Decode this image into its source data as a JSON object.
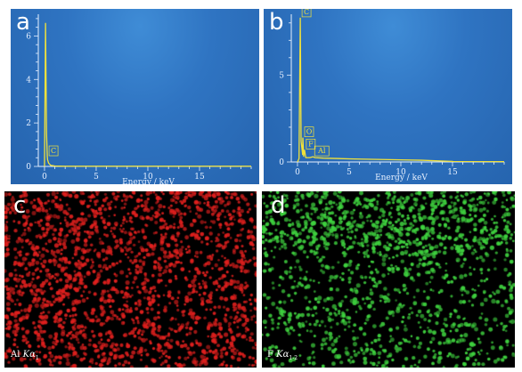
{
  "panels": {
    "a": {
      "letter": "a"
    },
    "b": {
      "letter": "b"
    },
    "c": {
      "letter": "c",
      "label_element": "Al",
      "label_line": "Kα",
      "label_sub": "1"
    },
    "d": {
      "letter": "d",
      "label_element": "F",
      "label_line": "Kα",
      "label_sub": "1-2"
    }
  },
  "colors": {
    "spectrum_bg": "#2f74c2",
    "trace": "#f2e23a",
    "axis": "#e6f0ff",
    "al_map": "#e0201e",
    "f_map": "#3fd23f"
  },
  "chart_data": [
    {
      "type": "line",
      "panel": "a",
      "xlabel": "Energy / keV",
      "ylabel": "",
      "xlim": [
        -0.6,
        20
      ],
      "ylim": [
        0,
        7
      ],
      "xticks": [
        0,
        5,
        10,
        15
      ],
      "yticks": [
        0,
        2,
        4,
        6
      ],
      "grid": false,
      "x": [
        0,
        0.1,
        0.2,
        0.27,
        0.3,
        0.4,
        0.6,
        1.0,
        2,
        5,
        10,
        15,
        20
      ],
      "y": [
        0,
        6.6,
        1.5,
        0.45,
        0.3,
        0.15,
        0.05,
        0.02,
        0.01,
        0.01,
        0.01,
        0.01,
        0.01
      ],
      "annotations": [
        {
          "text": "C",
          "x": 0.27,
          "y": 0.45
        }
      ]
    },
    {
      "type": "line",
      "panel": "b",
      "xlabel": "Energy / keV",
      "ylabel": "",
      "xlim": [
        -0.6,
        20
      ],
      "ylim": [
        0,
        8.5
      ],
      "xticks": [
        0,
        5,
        10,
        15
      ],
      "yticks": [
        0,
        5
      ],
      "grid": false,
      "x": [
        0,
        0.15,
        0.27,
        0.35,
        0.5,
        0.52,
        0.6,
        0.68,
        0.8,
        1.2,
        1.49,
        1.7,
        2.5,
        5,
        10,
        12,
        15,
        20
      ],
      "y": [
        0,
        0.2,
        8.3,
        1.2,
        0.4,
        1.4,
        0.3,
        0.7,
        0.25,
        0.25,
        0.3,
        0.25,
        0.22,
        0.18,
        0.12,
        0.1,
        0.03,
        0.02
      ],
      "annotations": [
        {
          "text": "C",
          "x": 0.27,
          "y": 8.3
        },
        {
          "text": "O",
          "x": 0.52,
          "y": 1.4
        },
        {
          "text": "F",
          "x": 0.68,
          "y": 0.7
        },
        {
          "text": "Al",
          "x": 1.49,
          "y": 0.3
        }
      ]
    }
  ]
}
